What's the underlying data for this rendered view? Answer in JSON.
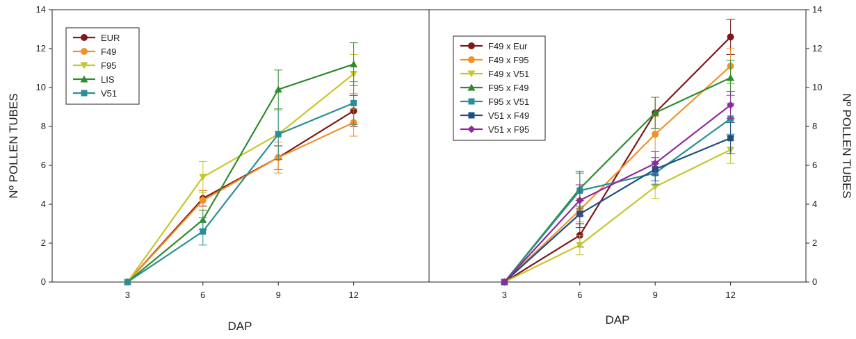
{
  "chart_data": [
    {
      "type": "line",
      "xlabel": "DAP",
      "ylabel": "Nº POLLEN TUBES",
      "x": [
        3,
        6,
        9,
        12
      ],
      "xlim": [
        0,
        15
      ],
      "ylim": [
        0,
        14
      ],
      "yticks": [
        0,
        2,
        4,
        6,
        8,
        10,
        12,
        14
      ],
      "grid": false,
      "legend_position": "top-left",
      "series": [
        {
          "name": "EUR",
          "color": "#7b1a1a",
          "marker": "circle",
          "values": [
            0,
            4.3,
            6.4,
            8.8
          ],
          "err": [
            0,
            0.4,
            0.6,
            0.8
          ]
        },
        {
          "name": "F49",
          "color": "#f0922b",
          "marker": "circle",
          "values": [
            0,
            4.2,
            6.4,
            8.2
          ],
          "err": [
            0,
            0.5,
            0.8,
            0.7
          ]
        },
        {
          "name": "F95",
          "color": "#c6c72a",
          "marker": "triangle-down",
          "values": [
            0,
            5.4,
            7.6,
            10.7
          ],
          "err": [
            0,
            0.8,
            1.2,
            1.0
          ]
        },
        {
          "name": "LIS",
          "color": "#2e8b2e",
          "marker": "triangle-up",
          "values": [
            0,
            3.2,
            9.9,
            11.2
          ],
          "err": [
            0,
            0.5,
            1.0,
            1.1
          ]
        },
        {
          "name": "V51",
          "color": "#2a8f94",
          "marker": "square",
          "values": [
            0,
            2.6,
            7.6,
            9.2
          ],
          "err": [
            0,
            0.7,
            1.3,
            1.1
          ]
        }
      ]
    },
    {
      "type": "line",
      "xlabel": "DAP",
      "ylabel": "Nº POLLEN TUBES",
      "x": [
        3,
        6,
        9,
        12
      ],
      "xlim": [
        0,
        15
      ],
      "ylim": [
        0,
        14
      ],
      "yticks": [
        0,
        2,
        4,
        6,
        8,
        10,
        12,
        14
      ],
      "grid": false,
      "legend_position": "top-left",
      "y_axis_side": "right",
      "series": [
        {
          "name": "F49 x Eur",
          "color": "#7b1a1a",
          "marker": "circle",
          "values": [
            0,
            2.4,
            8.7,
            12.6
          ],
          "err": [
            0,
            0.6,
            0.8,
            0.9
          ]
        },
        {
          "name": "F49 x F95",
          "color": "#f0922b",
          "marker": "circle",
          "values": [
            0,
            3.7,
            7.6,
            11.1
          ],
          "err": [
            0,
            0.6,
            0.9,
            0.9
          ]
        },
        {
          "name": "F49 x V51",
          "color": "#c6c72a",
          "marker": "triangle-down",
          "values": [
            0,
            1.9,
            4.9,
            6.8
          ],
          "err": [
            0,
            0.5,
            0.6,
            0.7
          ]
        },
        {
          "name": "F95 x F49",
          "color": "#2e8b2e",
          "marker": "triangle-up",
          "values": [
            0,
            4.8,
            8.7,
            10.5
          ],
          "err": [
            0,
            0.9,
            0.8,
            0.9
          ]
        },
        {
          "name": "F95 x V51",
          "color": "#2a8f94",
          "marker": "square",
          "values": [
            0,
            4.7,
            5.6,
            8.4
          ],
          "err": [
            0,
            0.9,
            0.6,
            0.8
          ]
        },
        {
          "name": "V51 x F49",
          "color": "#1f4e86",
          "marker": "square",
          "values": [
            0,
            3.5,
            5.8,
            7.4
          ],
          "err": [
            0,
            0.7,
            0.6,
            0.8
          ]
        },
        {
          "name": "V51 x F95",
          "color": "#8e2a9b",
          "marker": "diamond",
          "values": [
            0,
            4.2,
            6.1,
            9.1
          ],
          "err": [
            0,
            0.8,
            0.6,
            0.7
          ]
        }
      ]
    }
  ]
}
